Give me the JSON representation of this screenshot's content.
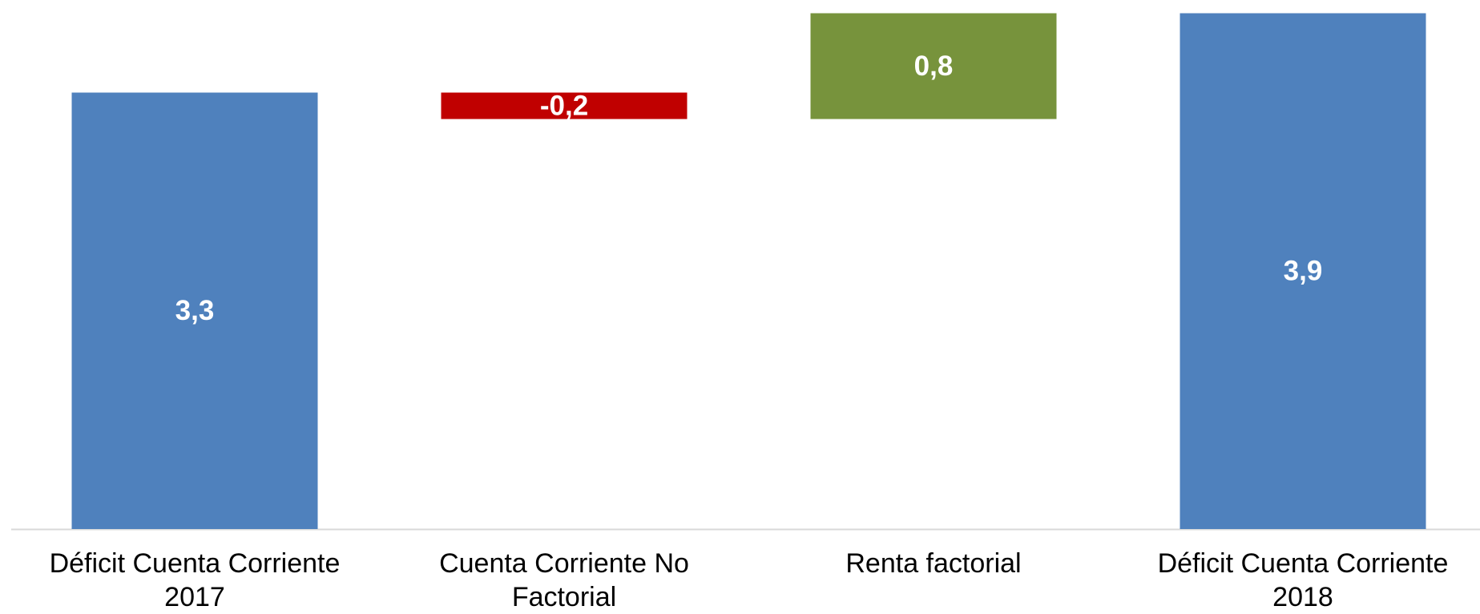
{
  "chart_data": {
    "type": "waterfall",
    "categories": [
      "Déficit Cuenta Corriente 2017",
      "Cuenta Corriente No Factorial",
      "Renta factorial",
      "Déficit Cuenta Corriente 2018"
    ],
    "values": [
      3.3,
      -0.2,
      0.8,
      3.9
    ],
    "value_labels": [
      "3,3",
      "-0,2",
      "0,8",
      "3,9"
    ],
    "totals": [
      true,
      false,
      false,
      true
    ],
    "colors": [
      "#4f81bd",
      "#c00000",
      "#77933c",
      "#4f81bd"
    ],
    "ylim": [
      0,
      4
    ]
  }
}
